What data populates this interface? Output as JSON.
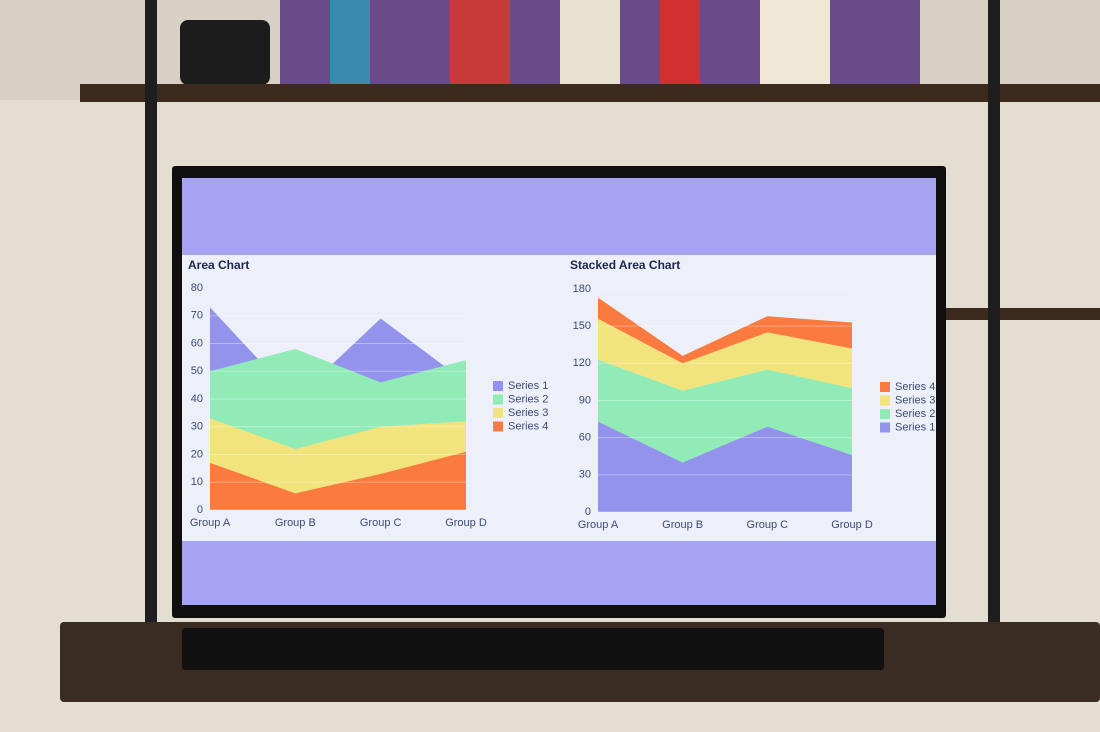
{
  "chart_data": [
    {
      "type": "area",
      "title": "Area Chart",
      "stacked": false,
      "categories": [
        "Group A",
        "Group B",
        "Group C",
        "Group D"
      ],
      "series": [
        {
          "name": "Series 1",
          "color": "#9393ee",
          "values": [
            73,
            40,
            69,
            46
          ]
        },
        {
          "name": "Series 2",
          "color": "#90ebb6",
          "values": [
            50,
            58,
            46,
            54
          ]
        },
        {
          "name": "Series 3",
          "color": "#f2e47c",
          "values": [
            33,
            22,
            30,
            32
          ]
        },
        {
          "name": "Series 4",
          "color": "#fa7a40",
          "values": [
            17,
            6,
            13,
            21
          ]
        }
      ],
      "ylim": [
        0,
        80
      ],
      "yticks": [
        0,
        10,
        20,
        30,
        40,
        50,
        60,
        70,
        80
      ],
      "grid": true,
      "legend": "right"
    },
    {
      "type": "area",
      "title": "Stacked Area Chart",
      "stacked": true,
      "categories": [
        "Group A",
        "Group B",
        "Group C",
        "Group D"
      ],
      "series": [
        {
          "name": "Series 1",
          "color": "#9393ee",
          "values": [
            73,
            40,
            69,
            46
          ]
        },
        {
          "name": "Series 2",
          "color": "#90ebb6",
          "values": [
            50,
            58,
            46,
            54
          ]
        },
        {
          "name": "Series 3",
          "color": "#f2e47c",
          "values": [
            33,
            22,
            30,
            32
          ]
        },
        {
          "name": "Series 4",
          "color": "#fa7a40",
          "values": [
            17,
            6,
            13,
            21
          ]
        }
      ],
      "ylim": [
        0,
        180
      ],
      "yticks": [
        0,
        30,
        60,
        90,
        120,
        150,
        180
      ],
      "grid": true,
      "legend": "right"
    }
  ]
}
